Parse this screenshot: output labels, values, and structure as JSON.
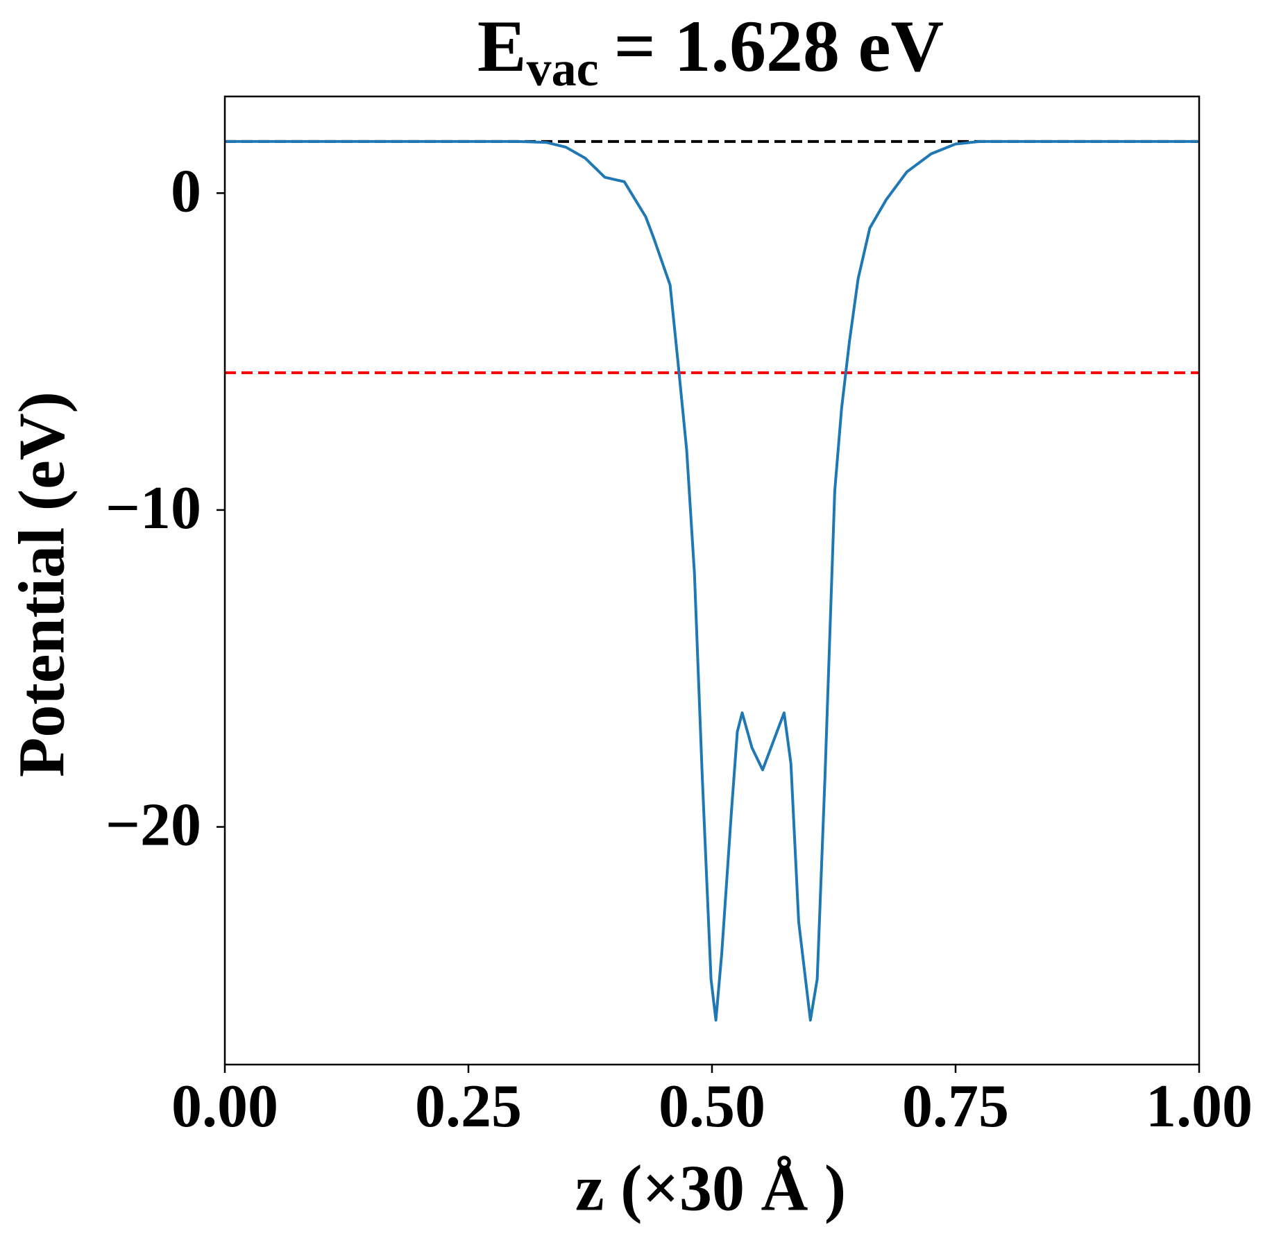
{
  "chart_data": {
    "type": "line",
    "title": {
      "main": "E",
      "sub": "vac",
      "rest": "= 1.628 eV"
    },
    "xlabel": "z (×30 Å )",
    "ylabel": "Potential (eV)",
    "x": [
      0,
      0.05,
      0.1,
      0.15,
      0.2,
      0.25,
      0.3,
      0.33,
      0.35,
      0.37,
      0.39,
      0.41,
      0.432,
      0.44,
      0.457,
      0.465,
      0.474,
      0.482,
      0.49,
      0.499,
      0.504,
      0.51,
      0.52,
      0.526,
      0.531,
      0.541,
      0.552,
      0.563,
      0.574,
      0.581,
      0.589,
      0.601,
      0.608,
      0.616,
      0.626,
      0.633,
      0.641,
      0.65,
      0.662,
      0.679,
      0.7,
      0.725,
      0.75,
      0.775,
      0.8,
      0.85,
      0.9,
      0.95,
      1.0
    ],
    "series": [
      {
        "name": "Potential",
        "color": "#1f77b4",
        "values": [
          1.63,
          1.63,
          1.63,
          1.63,
          1.63,
          1.63,
          1.63,
          1.6,
          1.45,
          1.1,
          0.5,
          0.36,
          -0.75,
          -1.4,
          -2.9,
          -5.3,
          -8.1,
          -12,
          -18.4,
          -24.8,
          -26.1,
          -24,
          -19.5,
          -17,
          -16.4,
          -17.5,
          -18.2,
          -17.3,
          -16.4,
          -18,
          -23,
          -26.1,
          -24.8,
          -18.4,
          -9.4,
          -6.8,
          -4.7,
          -2.7,
          -1.1,
          -0.2,
          0.67,
          1.24,
          1.55,
          1.63,
          1.63,
          1.63,
          1.63,
          1.63,
          1.63
        ]
      }
    ],
    "hlines": [
      {
        "value": 1.628,
        "color": "#000000"
      },
      {
        "value": -5.67,
        "color": "#ff0000"
      }
    ],
    "xlim": [
      0,
      1
    ],
    "ylim": [
      -27.5,
      3.05
    ],
    "xticks": [
      {
        "value": 0,
        "label": "0.00"
      },
      {
        "value": 0.25,
        "label": "0.25"
      },
      {
        "value": 0.5,
        "label": "0.50"
      },
      {
        "value": 0.75,
        "label": "0.75"
      },
      {
        "value": 1,
        "label": "1.00"
      }
    ],
    "yticks": [
      {
        "value": 0,
        "label": "0"
      },
      {
        "value": -10,
        "label": "−10"
      },
      {
        "value": -20,
        "label": "−20"
      }
    ]
  }
}
